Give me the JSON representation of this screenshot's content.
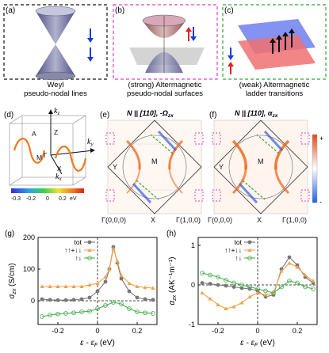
{
  "panels": {
    "a": {
      "tag": "(a)",
      "caption_line1": "Weyl",
      "caption_line2": "pseudo-nodal lines"
    },
    "b": {
      "tag": "(b)",
      "caption_line1": "(strong) Altermagnetic",
      "caption_line2": "pseudo-nodal surfaces"
    },
    "c": {
      "tag": "(c)",
      "caption_line1": "(weak) Altermagnetic",
      "caption_line2": "ladder transitions"
    },
    "d": {
      "tag": "(d)",
      "axis_kz": "k",
      "axis_kz_sub": "z",
      "axis_ky": "k",
      "axis_ky_sub": "y",
      "axis_kx": "k",
      "axis_kx_sub": "x",
      "points": [
        "A",
        "Z",
        "M",
        "Γ",
        "X"
      ],
      "colorbar_ticks": [
        "-0.3",
        "-0.2",
        "0",
        "0.2"
      ],
      "colorbar_unit": "eV"
    },
    "e": {
      "tag": "(e)",
      "title": "N || [110], -Ω",
      "title_sub": "zx",
      "points": [
        "Y",
        "M",
        "Γ(0,0,0)",
        "X",
        "Γ(1,0,0)"
      ]
    },
    "f": {
      "tag": "(f)",
      "title": "N || [110], α",
      "title_sub": "zx",
      "points": [
        "Y",
        "M",
        "Γ(0,0,0)",
        "X",
        "Γ(1,0,0)"
      ],
      "colorbar_plus": "+",
      "colorbar_minus": "-"
    }
  },
  "colors": {
    "tot": "#777777",
    "updown_sum": "#f5a04a",
    "updown_cross": "#4caf50",
    "dash_a": "#111111",
    "dash_b": "#e040c0",
    "dash_c": "#3aa03a"
  },
  "chart_data": [
    {
      "type": "line",
      "panel": "g",
      "tag": "(g)",
      "xlabel": "ε - ε",
      "xlabel_sub": "F",
      "xlabel_unit": "(eV)",
      "ylabel": "σ",
      "ylabel_sub": "zx",
      "ylabel_unit": "(S/cm)",
      "xlim": [
        -0.3,
        0.3
      ],
      "ylim": [
        -75,
        200
      ],
      "xticks": [
        -0.2,
        0,
        0.2
      ],
      "yticks": [
        0,
        100,
        200
      ],
      "legend": [
        "tot",
        "↑↑+↓↓",
        "↑↓"
      ],
      "series": [
        {
          "name": "tot",
          "marker": "circle",
          "x": [
            -0.28,
            -0.24,
            -0.2,
            -0.16,
            -0.12,
            -0.08,
            -0.04,
            0.0,
            0.04,
            0.06,
            0.08,
            0.1,
            0.12,
            0.16,
            0.2,
            0.24,
            0.28
          ],
          "values": [
            5,
            3,
            2,
            2,
            3,
            5,
            10,
            30,
            60,
            100,
            170,
            120,
            70,
            30,
            10,
            5,
            3
          ]
        },
        {
          "name": "↑↑+↓↓",
          "marker": "triangle",
          "x": [
            -0.28,
            -0.24,
            -0.2,
            -0.16,
            -0.12,
            -0.08,
            -0.04,
            0.0,
            0.04,
            0.06,
            0.08,
            0.1,
            0.12,
            0.16,
            0.2,
            0.24,
            0.28
          ],
          "values": [
            45,
            45,
            45,
            45,
            45,
            45,
            50,
            55,
            75,
            100,
            165,
            125,
            80,
            55,
            45,
            42,
            40
          ]
        },
        {
          "name": "↑↓",
          "marker": "open-circle",
          "x": [
            -0.28,
            -0.24,
            -0.2,
            -0.16,
            -0.12,
            -0.08,
            -0.04,
            0.0,
            0.04,
            0.08,
            0.12,
            0.16,
            0.2,
            0.24,
            0.28
          ],
          "values": [
            -50,
            -45,
            -42,
            -40,
            -38,
            -35,
            -33,
            -25,
            -15,
            -5,
            -10,
            -25,
            -35,
            -38,
            -40
          ]
        }
      ]
    },
    {
      "type": "line",
      "panel": "h",
      "tag": "(h)",
      "xlabel": "ε - ε",
      "xlabel_sub": "F",
      "xlabel_unit": "(eV)",
      "ylabel": "α",
      "ylabel_sub": "zx",
      "ylabel_unit": "(AK⁻¹m⁻¹)",
      "xlim": [
        -0.3,
        0.3
      ],
      "ylim": [
        -1,
        1.2
      ],
      "xticks": [
        -0.2,
        0,
        0.2
      ],
      "yticks": [
        -1,
        0,
        1
      ],
      "legend": [
        "tot",
        "↑↑+↓↓",
        "↑↓"
      ],
      "series": [
        {
          "name": "tot",
          "marker": "circle",
          "x": [
            -0.28,
            -0.24,
            -0.2,
            -0.16,
            -0.12,
            -0.08,
            -0.04,
            0.0,
            0.04,
            0.08,
            0.12,
            0.16,
            0.2,
            0.24,
            0.28
          ],
          "values": [
            0.05,
            0.03,
            0.0,
            -0.02,
            -0.05,
            -0.08,
            -0.1,
            -0.15,
            -0.3,
            -0.25,
            0.4,
            0.7,
            0.5,
            0.2,
            0.05
          ]
        },
        {
          "name": "↑↑+↓↓",
          "marker": "triangle",
          "x": [
            -0.28,
            -0.24,
            -0.2,
            -0.16,
            -0.12,
            -0.08,
            -0.04,
            0.0,
            0.04,
            0.08,
            0.12,
            0.16,
            0.2,
            0.24,
            0.28
          ],
          "values": [
            -0.2,
            -0.35,
            -0.5,
            -0.6,
            -0.55,
            -0.45,
            -0.3,
            -0.2,
            -0.25,
            -0.2,
            0.35,
            0.55,
            0.45,
            0.25,
            0.1
          ]
        },
        {
          "name": "↑↓",
          "marker": "open-circle",
          "x": [
            -0.28,
            -0.24,
            -0.2,
            -0.16,
            -0.12,
            -0.08,
            -0.04,
            0.0,
            0.04,
            0.08,
            0.12,
            0.16,
            0.2,
            0.24,
            0.28
          ],
          "values": [
            0.3,
            0.25,
            0.2,
            0.12,
            0.05,
            0.0,
            -0.05,
            -0.1,
            -0.15,
            -0.2,
            -0.05,
            0.1,
            0.05,
            -0.05,
            -0.1
          ]
        }
      ]
    }
  ]
}
